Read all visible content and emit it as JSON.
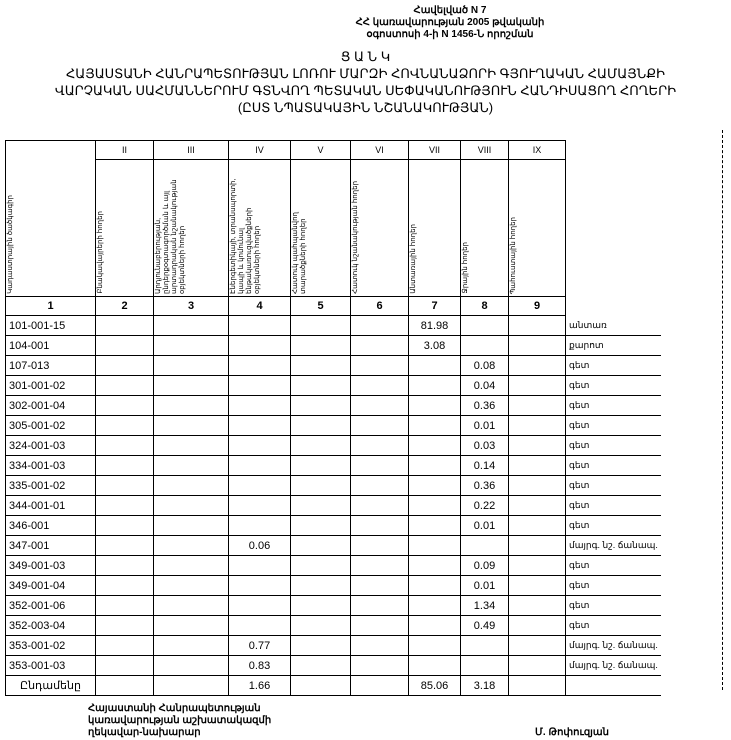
{
  "annex": [
    "Հավելված N 7",
    "ՀՀ կառավարության 2005 թվականի",
    "օգոստոսի 4-ի N 1456-Ն որոշման"
  ],
  "title": [
    "Ց Ա Ն Կ",
    "ՀԱՅԱՍՏԱՆԻ ՀԱՆՐԱՊԵՏՈՒԹՅԱՆ ԼՈՌՈՒ ՄԱՐԶԻ ՀՈՎՆԱՆԱՁՈՐԻ ԳՅՈՒՂԱԿԱՆ ՀԱՄԱՅՆՔԻ",
    "ՎԱՐՉԱԿԱՆ ՍԱՀՄԱՆՆԵՐՈՒՄ  ԳՏՆՎՈՂ  ՊԵՏԱԿԱՆ ՍԵՓԱԿԱՆՈՒԹՅՈՒՆ  ՀԱՆԴԻՍԱՑՈՂ  ՀՈՂԵՐԻ",
    "(ԸՍՏ ՆՊԱՏԱԿԱՅԻՆ ՆՇԱՆԱԿՈՒԹՅԱՆ)"
  ],
  "table": {
    "roman": [
      "II",
      "III",
      "IV",
      "V",
      "VI",
      "VII",
      "VIII",
      "IX"
    ],
    "headers": [
      "Կադաստրային ծածկագիր",
      "Բնակավայրերի հողեր",
      "Արդյունաբերության, ընդերքօգտագործման և այլ արտադրական նշանակության օբյեկտների հողեր",
      "Էներգետիկայի, տրանսպորտի, կապի և կոմունալ ենթակառուցվածքների օբյեկտների հողեր",
      "Հատուկ պահպանվող տարածքների հողեր",
      "Հատուկ նշանակության հողեր",
      "Անտառային հողեր",
      "Ջրային հողեր",
      "Պահուստային հողեր"
    ],
    "indices": [
      "1",
      "2",
      "3",
      "4",
      "5",
      "6",
      "7",
      "8",
      "9"
    ],
    "rows": [
      {
        "code": "101-001-15",
        "c4": "",
        "c7": "81.98",
        "c8": "",
        "note": "անտառ"
      },
      {
        "code": "104-001",
        "c4": "",
        "c7": "3.08",
        "c8": "",
        "note": "քարոտ"
      },
      {
        "code": "107-013",
        "c4": "",
        "c7": "",
        "c8": "0.08",
        "note": "գետ"
      },
      {
        "code": "301-001-02",
        "c4": "",
        "c7": "",
        "c8": "0.04",
        "note": "գետ"
      },
      {
        "code": "302-001-04",
        "c4": "",
        "c7": "",
        "c8": "0.36",
        "note": "գետ"
      },
      {
        "code": "305-001-02",
        "c4": "",
        "c7": "",
        "c8": "0.01",
        "note": "գետ"
      },
      {
        "code": "324-001-03",
        "c4": "",
        "c7": "",
        "c8": "0.03",
        "note": "գետ"
      },
      {
        "code": "334-001-03",
        "c4": "",
        "c7": "",
        "c8": "0.14",
        "note": "գետ"
      },
      {
        "code": "335-001-02",
        "c4": "",
        "c7": "",
        "c8": "0.36",
        "note": "գետ"
      },
      {
        "code": "344-001-01",
        "c4": "",
        "c7": "",
        "c8": "0.22",
        "note": "գետ"
      },
      {
        "code": "346-001",
        "c4": "",
        "c7": "",
        "c8": "0.01",
        "note": "գետ"
      },
      {
        "code": "347-001",
        "c4": "0.06",
        "c7": "",
        "c8": "",
        "note": "մայրգ. նշ. ճանապ."
      },
      {
        "code": "349-001-03",
        "c4": "",
        "c7": "",
        "c8": "0.09",
        "note": "գետ"
      },
      {
        "code": "349-001-04",
        "c4": "",
        "c7": "",
        "c8": "0.01",
        "note": "գետ"
      },
      {
        "code": "352-001-06",
        "c4": "",
        "c7": "",
        "c8": "1.34",
        "note": "գետ"
      },
      {
        "code": "352-003-04",
        "c4": "",
        "c7": "",
        "c8": "0.49",
        "note": "գետ"
      },
      {
        "code": "353-001-02",
        "c4": "0.77",
        "c7": "",
        "c8": "",
        "note": "մայրգ. նշ. ճանապ."
      },
      {
        "code": "353-001-03",
        "c4": "0.83",
        "c7": "",
        "c8": "",
        "note": "մայրգ. նշ. ճանապ."
      }
    ],
    "total": {
      "label": "Ընդամենը",
      "c4": "1.66",
      "c7": "85.06",
      "c8": "3.18"
    }
  },
  "footer": [
    "Հայաստանի Հանրապետության",
    "կառավարության աշխատակազմի",
    "ղեկավար-նախարար"
  ],
  "signature": "Մ. Թոփուզյան"
}
